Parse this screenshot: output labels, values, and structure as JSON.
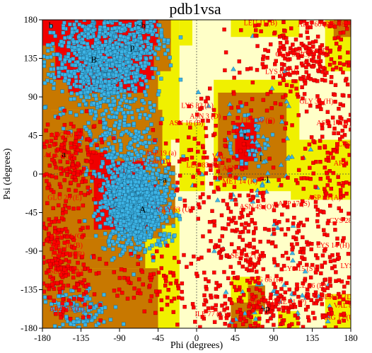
{
  "chart_data": {
    "type": "scatter",
    "title": "pdb1vsa",
    "xlabel": "Phi (degrees)",
    "ylabel": "Psi (degrees)",
    "xlim": [
      -180,
      180
    ],
    "ylim": [
      -180,
      180
    ],
    "xticks": [
      "-180",
      "-135",
      "-90",
      "-45",
      "0",
      "45",
      "90",
      "135",
      "180"
    ],
    "yticks": [
      "180",
      "135",
      "90",
      "45",
      "0",
      "-45",
      "-90",
      "-135",
      "-180"
    ],
    "grid": false,
    "region_colors": {
      "most_favoured": "#f00000",
      "additional_allowed": "#c87800",
      "generously_allowed": "#f0f000",
      "disallowed": "#ffffc8"
    },
    "point_colors": {
      "general": "#3cb4e6",
      "glycine": "#3cb4e6",
      "outlier": "#ff0000"
    },
    "region_labels": [
      {
        "text": "A",
        "phi": -63,
        "psi": -45
      },
      {
        "text": "a",
        "phi": -155,
        "psi": 20
      },
      {
        "text": "B",
        "phi": -120,
        "psi": 130
      },
      {
        "text": "b",
        "phi": -170,
        "psi": 170
      },
      {
        "text": "L",
        "phi": 58,
        "psi": 40
      },
      {
        "text": "l",
        "phi": 75,
        "psi": 15
      },
      {
        "text": "p",
        "phi": -75,
        "psi": 145
      },
      {
        "text": "~b",
        "phi": -65,
        "psi": 170
      },
      {
        "text": "~a",
        "phi": -40,
        "psi": -10
      },
      {
        "text": "~l",
        "phi": 80,
        "psi": -10
      },
      {
        "text": "~p",
        "phi": 80,
        "psi": -160
      }
    ],
    "residue_labels": [
      {
        "text": "LYS 83 (L)",
        "phi": -18,
        "psi": 77
      },
      {
        "text": "ASN 3 (D)",
        "phi": -8,
        "psi": 65
      },
      {
        "text": "LEU 83 (K)",
        "phi": -12,
        "psi": 8
      },
      {
        "text": "VAL",
        "phi": 18,
        "psi": 18
      },
      {
        "text": "ASN",
        "phi": 30,
        "psi": 4
      },
      {
        "text": "MET 14 (K)",
        "phi": 30,
        "psi": -11
      },
      {
        "text": "LEU 50 (C)",
        "phi": 52,
        "psi": 60
      },
      {
        "text": "ASN 16 (B)",
        "phi": -32,
        "psi": 57
      },
      {
        "text": "GLU 51 (C)",
        "phi": 92,
        "psi": 137
      },
      {
        "text": "ARG 60 (R)",
        "phi": 118,
        "psi": 172
      },
      {
        "text": "LYS 18 (S)",
        "phi": 148,
        "psi": 172
      },
      {
        "text": "LEU 11 (B)",
        "phi": 55,
        "psi": 174
      },
      {
        "text": "GLN 58 (D)",
        "phi": 115,
        "psi": 141
      },
      {
        "text": "LYS 63 (H)",
        "phi": 80,
        "psi": 117
      },
      {
        "text": "ALA 2 (C)",
        "phi": -178,
        "psi": 20
      },
      {
        "text": "ARG 20 (H)",
        "phi": -172,
        "psi": 43
      },
      {
        "text": "VAL 10 (B)",
        "phi": -172,
        "psi": -86
      },
      {
        "text": "SER 17 (A)",
        "phi": -172,
        "psi": -116
      },
      {
        "text": "LEU 40 (R)",
        "phi": -170,
        "psi": -96
      },
      {
        "text": "GLU 26 (E)",
        "phi": -174,
        "psi": -30
      },
      {
        "text": "ARG 13 (C)",
        "phi": -172,
        "psi": -160
      },
      {
        "text": "ASP 17 (S)",
        "phi": 95,
        "psi": -37
      },
      {
        "text": "ASN 49 (O)",
        "phi": 50,
        "psi": -41
      },
      {
        "text": "LEU 120 (D)",
        "phi": -75,
        "psi": 12
      },
      {
        "text": "ASP 19 (a)",
        "phi": -60,
        "psi": 22
      },
      {
        "text": "GLY 63 (U)",
        "phi": -45,
        "psi": -44
      },
      {
        "text": "ARG 66 (R)",
        "phi": 60,
        "psi": -126
      },
      {
        "text": "PHE 53 (P)",
        "phi": 60,
        "psi": -152
      },
      {
        "text": "ILE 77 (C)",
        "phi": -2,
        "psi": -166
      },
      {
        "text": "ARG 12 (U)",
        "phi": 145,
        "psi": -170
      },
      {
        "text": "VAL 8 (R)",
        "phi": 160,
        "psi": -156
      },
      {
        "text": "SER 24 (D)",
        "phi": 145,
        "psi": -146
      },
      {
        "text": "CYS 15 (S)",
        "phi": 100,
        "psi": -113
      },
      {
        "text": "ILE 36 (K)",
        "phi": 115,
        "psi": -133
      },
      {
        "text": "LYS 14 (H)",
        "phi": 140,
        "psi": -86
      },
      {
        "text": "CYS 28 (E)",
        "phi": 155,
        "psi": -57
      },
      {
        "text": "ASP 33 (A)",
        "phi": 130,
        "psi": -30
      },
      {
        "text": "LYS 31 (B)",
        "phi": 165,
        "psi": 32
      },
      {
        "text": "ARG 57 (A)",
        "phi": 160,
        "psi": 10
      },
      {
        "text": "LYS 63 (C)",
        "phi": 168,
        "psi": -110
      },
      {
        "text": "ASN 14 (H)",
        "phi": 140,
        "psi": 57
      },
      {
        "text": "GLY 32 (H)",
        "phi": 120,
        "psi": 82
      },
      {
        "text": "SER 41 (C)",
        "phi": -170,
        "psi": -75
      },
      {
        "text": "SER 52 (A)",
        "phi": 40,
        "psi": -98
      },
      {
        "text": "PHE 51 (P)",
        "phi": 90,
        "psi": -152
      }
    ]
  }
}
